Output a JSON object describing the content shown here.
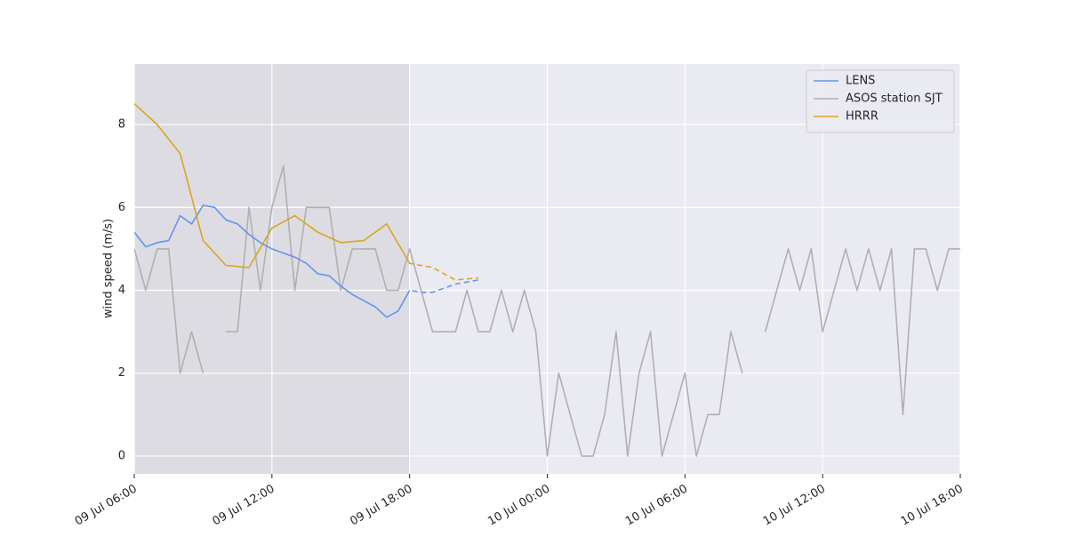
{
  "chart_data": {
    "type": "line",
    "y_label": "wind speed (m/s)",
    "xlim": [
      "09 Jul 06:00",
      "10 Jul 18:00"
    ],
    "xticks": [
      "09 Jul 06:00",
      "09 Jul 12:00",
      "09 Jul 18:00",
      "10 Jul 00:00",
      "10 Jul 06:00",
      "10 Jul 12:00",
      "10 Jul 18:00"
    ],
    "ylim": [
      -0.43,
      9.46
    ],
    "yticks": [
      0,
      2,
      4,
      6,
      8
    ],
    "grid": true,
    "legend": "upper right",
    "observed_until": "09 Jul 18:00",
    "series": [
      {
        "name": "LENS",
        "color": "#6495ed",
        "forecast_dashed": true,
        "x": [
          "09 Jul 06:00",
          "09 Jul 06:30",
          "09 Jul 07:00",
          "09 Jul 07:30",
          "09 Jul 08:00",
          "09 Jul 08:30",
          "09 Jul 09:00",
          "09 Jul 09:30",
          "09 Jul 10:00",
          "09 Jul 10:30",
          "09 Jul 11:00",
          "09 Jul 11:30",
          "09 Jul 12:00",
          "09 Jul 12:30",
          "09 Jul 13:00",
          "09 Jul 13:30",
          "09 Jul 14:00",
          "09 Jul 14:30",
          "09 Jul 15:00",
          "09 Jul 15:30",
          "09 Jul 16:00",
          "09 Jul 16:30",
          "09 Jul 17:00",
          "09 Jul 17:30",
          "09 Jul 18:00",
          "09 Jul 18:30",
          "09 Jul 19:00",
          "09 Jul 19:30",
          "09 Jul 20:00",
          "09 Jul 20:30",
          "09 Jul 21:00"
        ],
        "values": [
          5.4,
          5.05,
          5.15,
          5.2,
          5.8,
          5.6,
          6.05,
          6.0,
          5.7,
          5.6,
          5.35,
          5.15,
          5.0,
          4.9,
          4.8,
          4.65,
          4.4,
          4.35,
          4.1,
          3.9,
          3.75,
          3.6,
          3.35,
          3.5,
          4.0,
          3.95,
          3.95,
          4.05,
          4.15,
          4.2,
          4.25
        ]
      },
      {
        "name": "ASOS station SJT",
        "color": "#b0b0b0",
        "forecast_dashed": false,
        "x": [
          "09 Jul 06:00",
          "09 Jul 06:30",
          "09 Jul 07:00",
          "09 Jul 07:30",
          "09 Jul 08:00",
          "09 Jul 08:30",
          "09 Jul 09:00",
          "09 Jul 09:30",
          "09 Jul 10:00",
          "09 Jul 10:30",
          "09 Jul 11:00",
          "09 Jul 11:30",
          "09 Jul 12:00",
          "09 Jul 12:30",
          "09 Jul 13:00",
          "09 Jul 13:30",
          "09 Jul 14:00",
          "09 Jul 14:30",
          "09 Jul 15:00",
          "09 Jul 15:30",
          "09 Jul 16:00",
          "09 Jul 16:30",
          "09 Jul 17:00",
          "09 Jul 17:30",
          "09 Jul 18:00",
          "09 Jul 18:30",
          "09 Jul 19:00",
          "09 Jul 19:30",
          "09 Jul 20:00",
          "09 Jul 20:30",
          "09 Jul 21:00",
          "09 Jul 21:30",
          "09 Jul 22:00",
          "09 Jul 22:30",
          "09 Jul 23:00",
          "09 Jul 23:30",
          "10 Jul 00:00",
          "10 Jul 00:30",
          "10 Jul 01:00",
          "10 Jul 01:30",
          "10 Jul 02:00",
          "10 Jul 02:30",
          "10 Jul 03:00",
          "10 Jul 03:30",
          "10 Jul 04:00",
          "10 Jul 04:30",
          "10 Jul 05:00",
          "10 Jul 05:30",
          "10 Jul 06:00",
          "10 Jul 06:30",
          "10 Jul 07:00",
          "10 Jul 07:30",
          "10 Jul 08:00",
          "10 Jul 08:30",
          "10 Jul 09:00",
          "10 Jul 09:30",
          "10 Jul 10:00",
          "10 Jul 10:30",
          "10 Jul 11:00",
          "10 Jul 11:30",
          "10 Jul 12:00",
          "10 Jul 12:30",
          "10 Jul 13:00",
          "10 Jul 13:30",
          "10 Jul 14:00",
          "10 Jul 14:30",
          "10 Jul 15:00",
          "10 Jul 15:30",
          "10 Jul 16:00",
          "10 Jul 16:30",
          "10 Jul 17:00",
          "10 Jul 17:30",
          "10 Jul 18:00"
        ],
        "values": [
          5,
          4,
          5,
          5,
          2,
          3,
          2,
          null,
          3,
          3,
          6,
          4,
          6,
          7,
          4,
          6,
          6,
          6,
          4,
          5,
          5,
          5,
          4,
          4,
          5,
          4,
          3,
          3,
          3,
          4,
          3,
          3,
          4,
          3,
          4,
          3,
          0,
          2,
          1,
          0,
          0,
          1,
          3,
          0,
          2,
          3,
          0,
          1,
          2,
          0,
          1,
          1,
          3,
          2,
          null,
          3,
          4,
          5,
          4,
          5,
          3,
          4,
          5,
          4,
          5,
          4,
          5,
          1,
          5,
          5,
          4,
          5,
          5
        ]
      },
      {
        "name": "HRRR",
        "color": "#daa520",
        "forecast_dashed": true,
        "x": [
          "09 Jul 06:00",
          "09 Jul 07:00",
          "09 Jul 08:00",
          "09 Jul 09:00",
          "09 Jul 10:00",
          "09 Jul 11:00",
          "09 Jul 12:00",
          "09 Jul 13:00",
          "09 Jul 14:00",
          "09 Jul 15:00",
          "09 Jul 16:00",
          "09 Jul 17:00",
          "09 Jul 18:00",
          "09 Jul 19:00",
          "09 Jul 20:00",
          "09 Jul 21:00"
        ],
        "values": [
          8.5,
          8.0,
          7.3,
          5.2,
          4.6,
          4.55,
          5.5,
          5.8,
          5.4,
          5.15,
          5.2,
          5.6,
          4.65,
          4.55,
          4.25,
          4.3
        ]
      }
    ]
  }
}
